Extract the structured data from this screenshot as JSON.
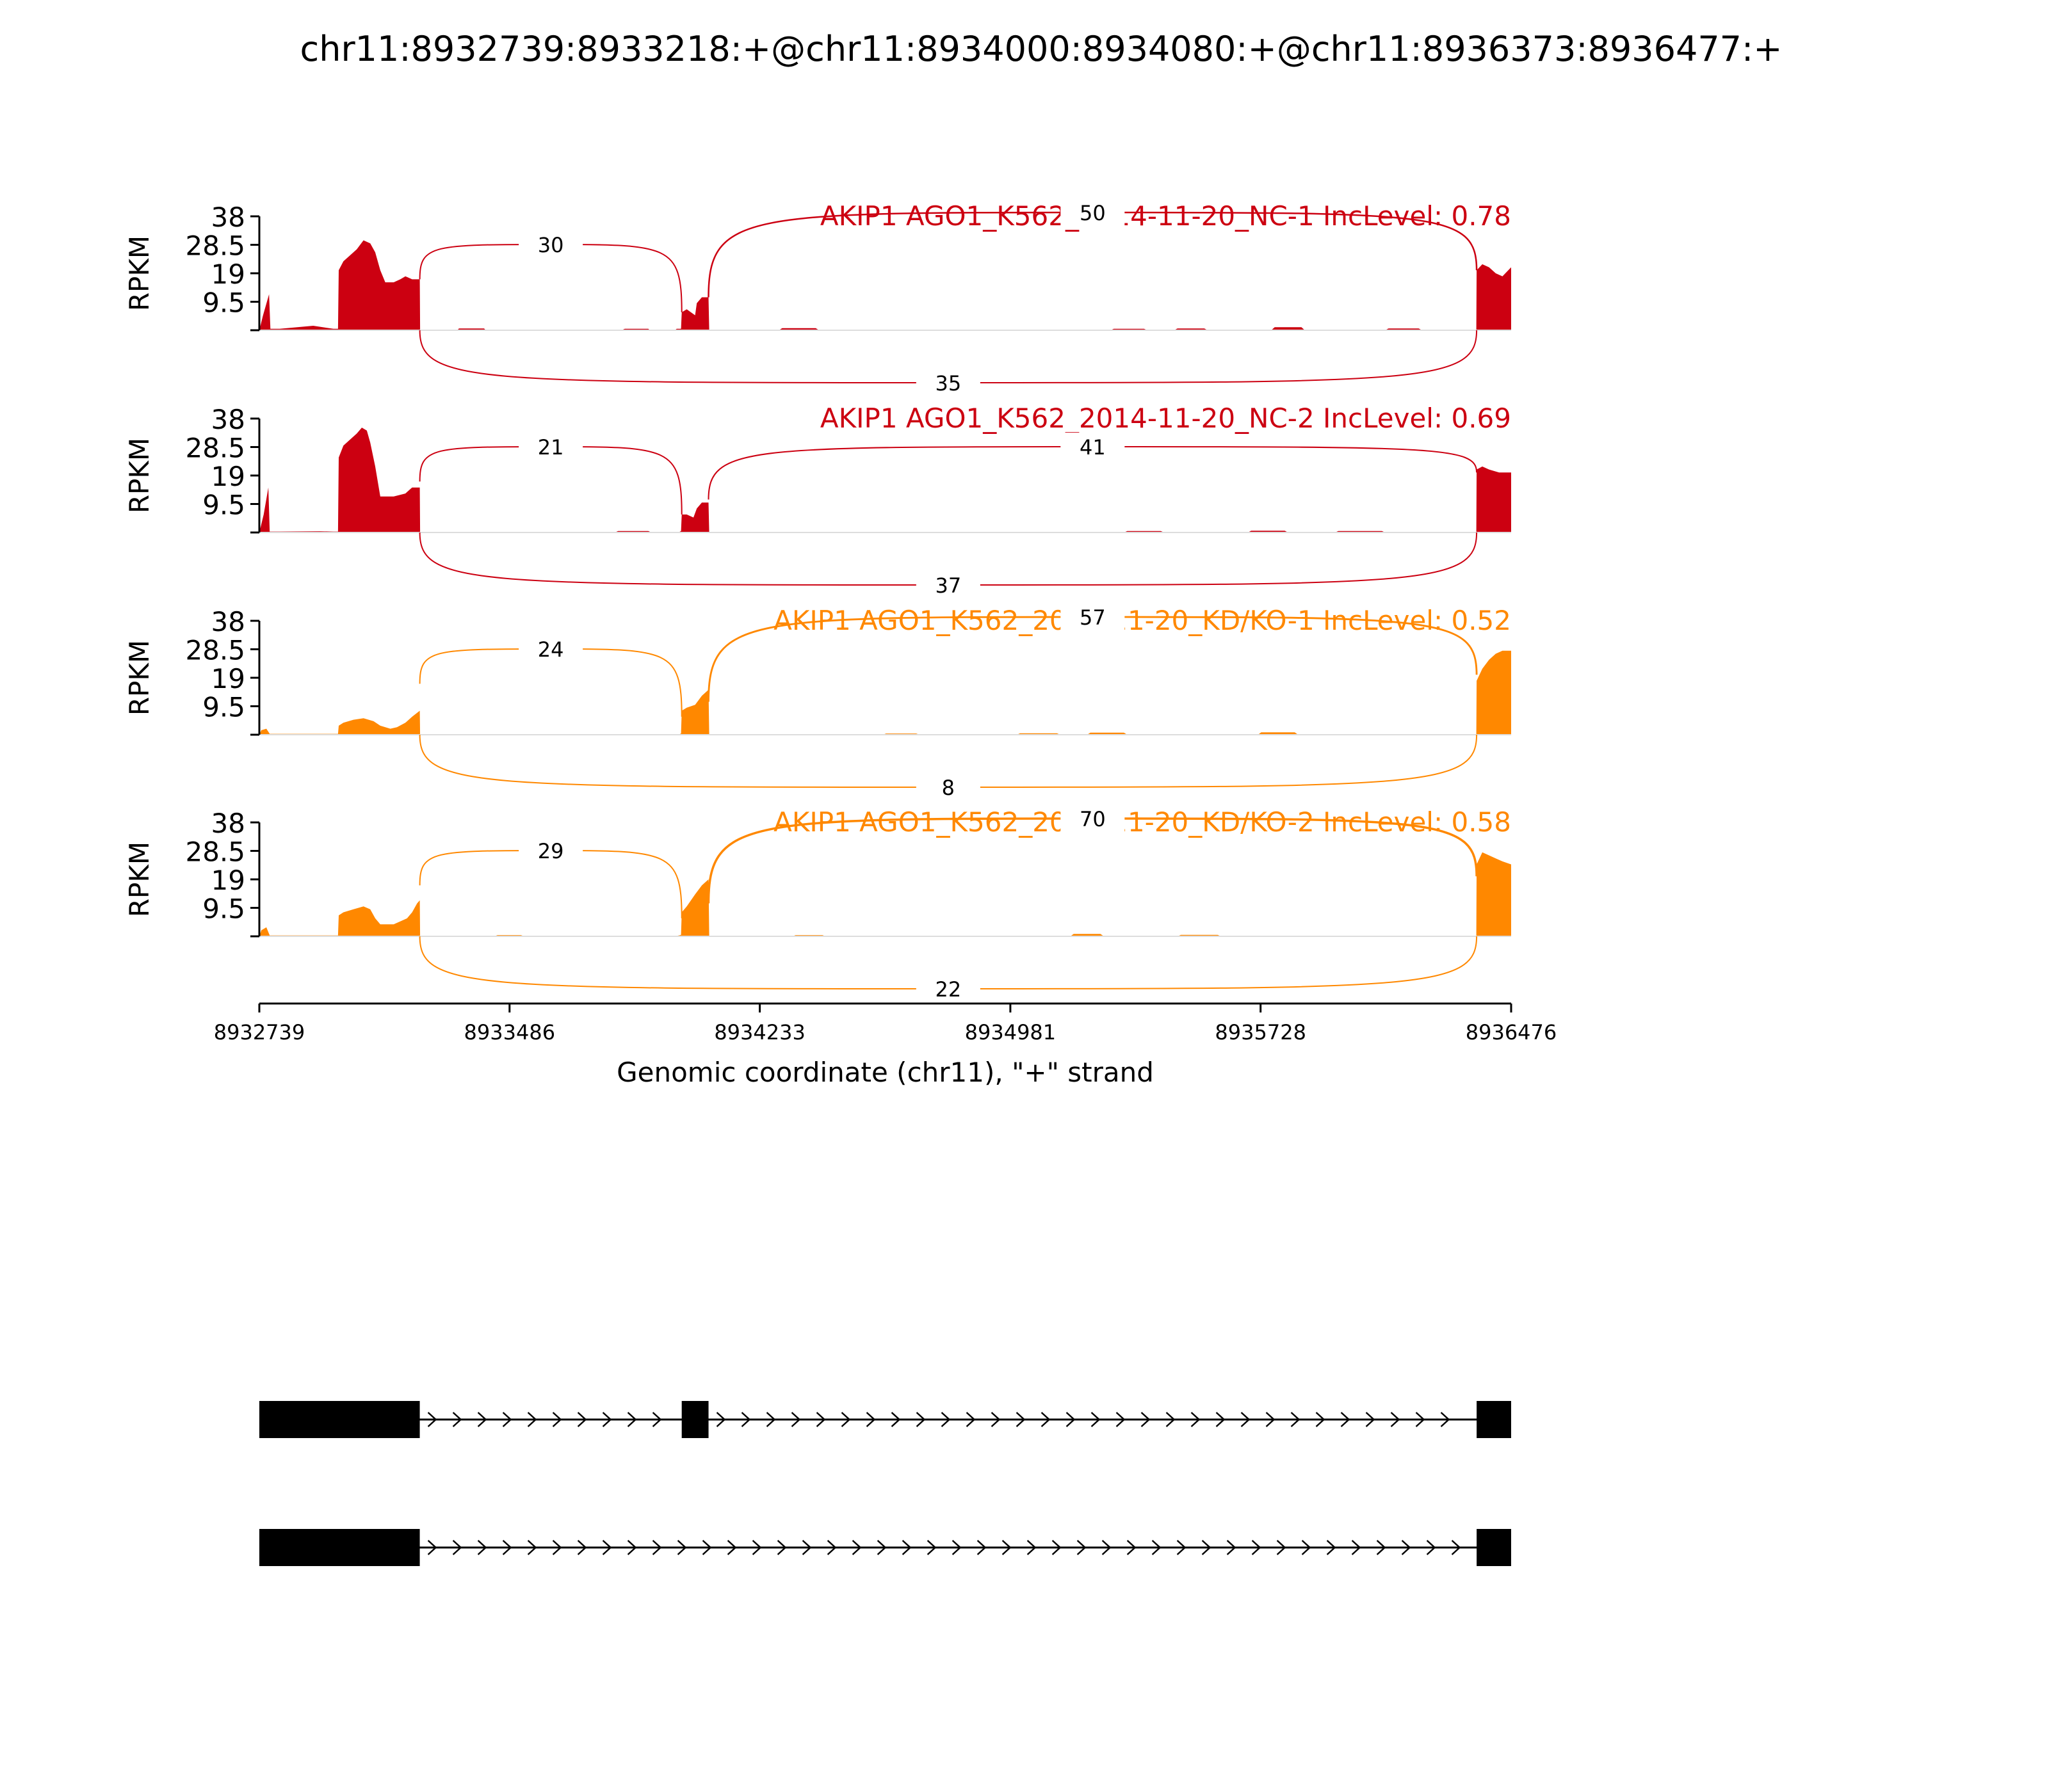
{
  "title": "chr11:8932739:8933218:+@chr11:8934000:8934080:+@chr11:8936373:8936477:+",
  "chart_data": {
    "type": "area",
    "chart_kind": "sashimi",
    "xlabel": "Genomic coordinate (chr11), \"+\" strand",
    "ylabel": "RPKM",
    "xlim": [
      8932739,
      8936476
    ],
    "ylim": [
      0,
      38
    ],
    "x_ticks": [
      8932739,
      8933486,
      8934233,
      8934981,
      8935728,
      8936476
    ],
    "y_ticks": [
      9.5,
      19,
      28.5,
      38
    ],
    "exons": [
      {
        "start": 8932739,
        "end": 8933218
      },
      {
        "start": 8934000,
        "end": 8934080
      },
      {
        "start": 8936373,
        "end": 8936477
      }
    ],
    "tracks": [
      {
        "label": "AKIP1 AGO1_K562_2014-11-20_NC-1 IncLevel: 0.78",
        "color": "#cc0011",
        "junctions": [
          {
            "start": 8933218,
            "end": 8934000,
            "count": 30,
            "side": "above"
          },
          {
            "start": 8934080,
            "end": 8936373,
            "count": 50,
            "side": "above"
          },
          {
            "start": 8933218,
            "end": 8936373,
            "count": 35,
            "side": "below"
          }
        ],
        "coverage": [
          [
            8932739,
            0
          ],
          [
            8932750,
            5
          ],
          [
            8932768,
            12
          ],
          [
            8932772,
            0.5
          ],
          [
            8932800,
            0.5
          ],
          [
            8932900,
            1.5
          ],
          [
            8932960,
            0.5
          ],
          [
            8932974,
            0.5
          ],
          [
            8932976,
            20
          ],
          [
            8932990,
            23
          ],
          [
            8933010,
            25
          ],
          [
            8933030,
            27
          ],
          [
            8933050,
            30
          ],
          [
            8933070,
            29
          ],
          [
            8933085,
            26
          ],
          [
            8933100,
            20
          ],
          [
            8933115,
            16
          ],
          [
            8933140,
            16
          ],
          [
            8933160,
            17
          ],
          [
            8933175,
            18
          ],
          [
            8933195,
            17
          ],
          [
            8933218,
            17
          ],
          [
            8933219,
            0
          ],
          [
            8933330,
            0
          ],
          [
            8933335,
            0.6
          ],
          [
            8933410,
            0.6
          ],
          [
            8933415,
            0
          ],
          [
            8933820,
            0
          ],
          [
            8933830,
            0.5
          ],
          [
            8933900,
            0.5
          ],
          [
            8933905,
            0
          ],
          [
            8933980,
            0
          ],
          [
            8933985,
            0.5
          ],
          [
            8933998,
            0.5
          ],
          [
            8934000,
            6
          ],
          [
            8934015,
            7
          ],
          [
            8934040,
            5
          ],
          [
            8934045,
            9
          ],
          [
            8934060,
            11
          ],
          [
            8934080,
            11
          ],
          [
            8934082,
            0
          ],
          [
            8934290,
            0
          ],
          [
            8934300,
            0.7
          ],
          [
            8934400,
            0.7
          ],
          [
            8934410,
            0
          ],
          [
            8935280,
            0
          ],
          [
            8935290,
            0.5
          ],
          [
            8935380,
            0.5
          ],
          [
            8935390,
            0
          ],
          [
            8935470,
            0
          ],
          [
            8935480,
            0.6
          ],
          [
            8935560,
            0.6
          ],
          [
            8935570,
            0
          ],
          [
            8935760,
            0
          ],
          [
            8935770,
            1
          ],
          [
            8935850,
            1
          ],
          [
            8935860,
            0
          ],
          [
            8936100,
            0
          ],
          [
            8936110,
            0.6
          ],
          [
            8936200,
            0.6
          ],
          [
            8936210,
            0
          ],
          [
            8936372,
            0
          ],
          [
            8936373,
            20
          ],
          [
            8936390,
            22
          ],
          [
            8936410,
            21
          ],
          [
            8936430,
            19
          ],
          [
            8936450,
            18
          ],
          [
            8936476,
            21
          ]
        ]
      },
      {
        "label": "AKIP1 AGO1_K562_2014-11-20_NC-2 IncLevel: 0.69",
        "color": "#cc0011",
        "junctions": [
          {
            "start": 8933218,
            "end": 8934000,
            "count": 21,
            "side": "above"
          },
          {
            "start": 8934080,
            "end": 8936373,
            "count": 41,
            "side": "above"
          },
          {
            "start": 8933218,
            "end": 8936373,
            "count": 37,
            "side": "below"
          }
        ],
        "coverage": [
          [
            8932739,
            0
          ],
          [
            8932752,
            6
          ],
          [
            8932766,
            15
          ],
          [
            8932770,
            0.3
          ],
          [
            8932800,
            0.3
          ],
          [
            8932920,
            0.4
          ],
          [
            8932960,
            0.3
          ],
          [
            8932974,
            0.3
          ],
          [
            8932976,
            25
          ],
          [
            8932990,
            29
          ],
          [
            8933010,
            31
          ],
          [
            8933030,
            33
          ],
          [
            8933045,
            35
          ],
          [
            8933060,
            34
          ],
          [
            8933070,
            30
          ],
          [
            8933085,
            22
          ],
          [
            8933100,
            12
          ],
          [
            8933140,
            12
          ],
          [
            8933175,
            13
          ],
          [
            8933195,
            15
          ],
          [
            8933218,
            15
          ],
          [
            8933219,
            0
          ],
          [
            8933800,
            0
          ],
          [
            8933810,
            0.5
          ],
          [
            8933900,
            0.5
          ],
          [
            8933910,
            0
          ],
          [
            8933990,
            0
          ],
          [
            8933998,
            0.5
          ],
          [
            8934000,
            6
          ],
          [
            8934015,
            6
          ],
          [
            8934035,
            5
          ],
          [
            8934045,
            8
          ],
          [
            8934060,
            10
          ],
          [
            8934080,
            10
          ],
          [
            8934082,
            0
          ],
          [
            8935320,
            0
          ],
          [
            8935330,
            0.5
          ],
          [
            8935430,
            0.5
          ],
          [
            8935440,
            0
          ],
          [
            8935690,
            0
          ],
          [
            8935700,
            0.6
          ],
          [
            8935800,
            0.6
          ],
          [
            8935810,
            0
          ],
          [
            8935950,
            0
          ],
          [
            8935960,
            0.5
          ],
          [
            8936090,
            0.5
          ],
          [
            8936100,
            0
          ],
          [
            8936372,
            0
          ],
          [
            8936373,
            21
          ],
          [
            8936390,
            22
          ],
          [
            8936410,
            21
          ],
          [
            8936440,
            20
          ],
          [
            8936476,
            20
          ]
        ]
      },
      {
        "label": "AKIP1 AGO1_K562_2014-11-20_KD/KO-1 IncLevel: 0.52",
        "color": "#ff8800",
        "junctions": [
          {
            "start": 8933218,
            "end": 8934000,
            "count": 24,
            "side": "above"
          },
          {
            "start": 8934080,
            "end": 8936373,
            "count": 57,
            "side": "above"
          },
          {
            "start": 8933218,
            "end": 8936373,
            "count": 8,
            "side": "below"
          }
        ],
        "coverage": [
          [
            8932739,
            0
          ],
          [
            8932745,
            1.5
          ],
          [
            8932760,
            2
          ],
          [
            8932770,
            0.3
          ],
          [
            8932960,
            0.3
          ],
          [
            8932974,
            0.3
          ],
          [
            8932976,
            3
          ],
          [
            8932990,
            4
          ],
          [
            8933020,
            5
          ],
          [
            8933050,
            5.5
          ],
          [
            8933080,
            4.5
          ],
          [
            8933100,
            3
          ],
          [
            8933130,
            2
          ],
          [
            8933150,
            2.5
          ],
          [
            8933175,
            4
          ],
          [
            8933195,
            6
          ],
          [
            8933218,
            8
          ],
          [
            8933219,
            0
          ],
          [
            8933990,
            0
          ],
          [
            8933998,
            0.4
          ],
          [
            8934000,
            8
          ],
          [
            8934015,
            9
          ],
          [
            8934040,
            10
          ],
          [
            8934060,
            13
          ],
          [
            8934080,
            15
          ],
          [
            8934082,
            0
          ],
          [
            8934600,
            0
          ],
          [
            8934610,
            0.4
          ],
          [
            8934700,
            0.4
          ],
          [
            8934710,
            0
          ],
          [
            8935000,
            0
          ],
          [
            8935010,
            0.5
          ],
          [
            8935120,
            0.5
          ],
          [
            8935130,
            0
          ],
          [
            8935210,
            0
          ],
          [
            8935220,
            0.7
          ],
          [
            8935320,
            0.7
          ],
          [
            8935330,
            0
          ],
          [
            8935720,
            0
          ],
          [
            8935730,
            0.8
          ],
          [
            8935830,
            0.8
          ],
          [
            8935840,
            0
          ],
          [
            8936372,
            0
          ],
          [
            8936373,
            18
          ],
          [
            8936390,
            22
          ],
          [
            8936410,
            25
          ],
          [
            8936430,
            27
          ],
          [
            8936450,
            28
          ],
          [
            8936476,
            28
          ]
        ]
      },
      {
        "label": "AKIP1 AGO1_K562_2014-11-20_KD/KO-2 IncLevel: 0.58",
        "color": "#ff8800",
        "junctions": [
          {
            "start": 8933218,
            "end": 8934000,
            "count": 29,
            "side": "above"
          },
          {
            "start": 8934080,
            "end": 8936373,
            "count": 70,
            "side": "above"
          },
          {
            "start": 8933218,
            "end": 8936373,
            "count": 22,
            "side": "below"
          }
        ],
        "coverage": [
          [
            8932739,
            0
          ],
          [
            8932745,
            2
          ],
          [
            8932760,
            3
          ],
          [
            8932770,
            0.3
          ],
          [
            8932960,
            0.3
          ],
          [
            8932974,
            0.3
          ],
          [
            8932976,
            7
          ],
          [
            8932990,
            8
          ],
          [
            8933020,
            9
          ],
          [
            8933050,
            10
          ],
          [
            8933070,
            9
          ],
          [
            8933085,
            6
          ],
          [
            8933100,
            4
          ],
          [
            8933140,
            4
          ],
          [
            8933160,
            5
          ],
          [
            8933180,
            6
          ],
          [
            8933195,
            8
          ],
          [
            8933210,
            11
          ],
          [
            8933218,
            12
          ],
          [
            8933219,
            0
          ],
          [
            8933440,
            0
          ],
          [
            8933450,
            0.4
          ],
          [
            8933520,
            0.4
          ],
          [
            8933530,
            0
          ],
          [
            8933980,
            0
          ],
          [
            8933998,
            0.5
          ],
          [
            8934000,
            8
          ],
          [
            8934015,
            10
          ],
          [
            8934040,
            14
          ],
          [
            8934060,
            17
          ],
          [
            8934080,
            19
          ],
          [
            8934082,
            0
          ],
          [
            8934330,
            0
          ],
          [
            8934340,
            0.4
          ],
          [
            8934420,
            0.4
          ],
          [
            8934430,
            0
          ],
          [
            8935160,
            0
          ],
          [
            8935170,
            0.8
          ],
          [
            8935250,
            0.8
          ],
          [
            8935260,
            0
          ],
          [
            8935480,
            0
          ],
          [
            8935490,
            0.5
          ],
          [
            8935600,
            0.5
          ],
          [
            8935610,
            0
          ],
          [
            8936372,
            0
          ],
          [
            8936373,
            24
          ],
          [
            8936390,
            28
          ],
          [
            8936410,
            27
          ],
          [
            8936430,
            26
          ],
          [
            8936450,
            25
          ],
          [
            8936476,
            24
          ]
        ]
      }
    ],
    "transcripts": [
      {
        "exons": [
          [
            8932739,
            8933218
          ],
          [
            8934000,
            8934080
          ],
          [
            8936373,
            8936476
          ]
        ],
        "strand": "+"
      },
      {
        "exons": [
          [
            8932739,
            8933218
          ],
          [
            8936373,
            8936476
          ]
        ],
        "strand": "+"
      }
    ]
  }
}
